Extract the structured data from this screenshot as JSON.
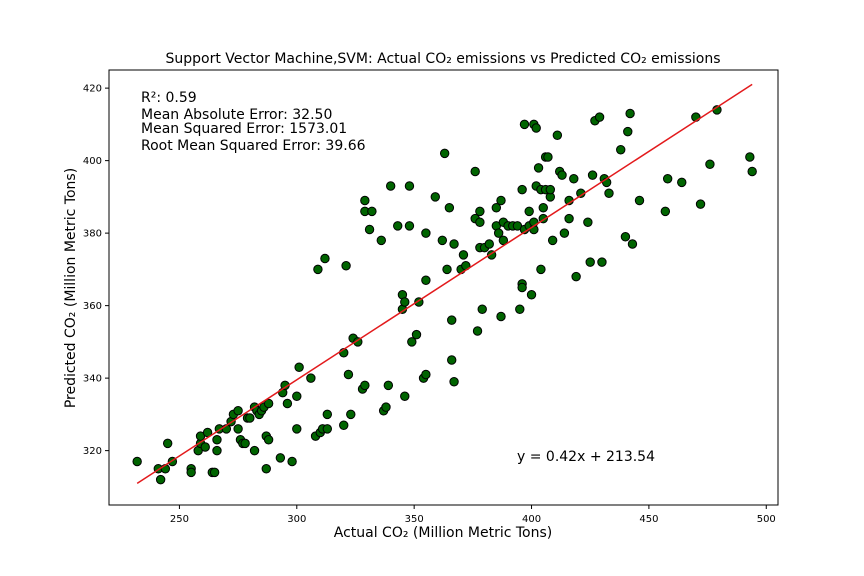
{
  "chart_data": {
    "type": "scatter",
    "title": "Support Vector Machine,SVM: Actual CO₂ emissions vs Predicted CO₂ emissions",
    "xlabel": "Actual CO₂ (Million Metric Tons)",
    "ylabel": "Predicted CO₂ (Million Metric Tons)",
    "xlim": [
      220,
      505
    ],
    "ylim": [
      305,
      425
    ],
    "xticks": [
      250,
      300,
      350,
      400,
      450,
      500
    ],
    "yticks": [
      320,
      340,
      360,
      380,
      400,
      420
    ],
    "grid": false,
    "marker_color": "#006400",
    "marker_edge": "#000000",
    "line_color": "#e31a1c",
    "stats": [
      "R²: 0.59",
      "Mean Absolute Error: 32.50",
      "Mean Squared Error: 1573.01",
      "Root Mean Squared Error: 39.66"
    ],
    "equation": "y = 0.42x + 213.54",
    "fit": {
      "slope": 0.42,
      "intercept": 213.54,
      "x_range": [
        232,
        494
      ]
    },
    "points": [
      [
        232,
        317
      ],
      [
        241,
        315
      ],
      [
        242,
        312
      ],
      [
        244,
        315
      ],
      [
        245,
        322
      ],
      [
        247,
        317
      ],
      [
        255,
        315
      ],
      [
        255,
        314
      ],
      [
        258,
        320
      ],
      [
        259,
        322
      ],
      [
        259,
        324
      ],
      [
        261,
        321
      ],
      [
        262,
        325
      ],
      [
        264,
        314
      ],
      [
        265,
        314
      ],
      [
        266,
        320
      ],
      [
        266,
        323
      ],
      [
        267,
        326
      ],
      [
        270,
        326
      ],
      [
        272,
        328
      ],
      [
        273,
        330
      ],
      [
        275,
        331
      ],
      [
        275,
        326
      ],
      [
        276,
        323
      ],
      [
        277,
        322
      ],
      [
        278,
        322
      ],
      [
        279,
        329
      ],
      [
        280,
        329
      ],
      [
        282,
        332
      ],
      [
        282,
        320
      ],
      [
        283,
        331
      ],
      [
        284,
        330
      ],
      [
        285,
        331
      ],
      [
        286,
        332
      ],
      [
        287,
        324
      ],
      [
        287,
        315
      ],
      [
        288,
        323
      ],
      [
        288,
        333
      ],
      [
        293,
        318
      ],
      [
        294,
        336
      ],
      [
        295,
        338
      ],
      [
        296,
        333
      ],
      [
        298,
        317
      ],
      [
        300,
        326
      ],
      [
        300,
        335
      ],
      [
        301,
        343
      ],
      [
        306,
        340
      ],
      [
        308,
        324
      ],
      [
        309,
        370
      ],
      [
        310,
        325
      ],
      [
        311,
        326
      ],
      [
        312,
        373
      ],
      [
        313,
        330
      ],
      [
        313,
        326
      ],
      [
        320,
        327
      ],
      [
        320,
        347
      ],
      [
        321,
        371
      ],
      [
        322,
        341
      ],
      [
        323,
        330
      ],
      [
        324,
        351
      ],
      [
        326,
        350
      ],
      [
        328,
        337
      ],
      [
        329,
        389
      ],
      [
        329,
        386
      ],
      [
        329,
        338
      ],
      [
        331,
        381
      ],
      [
        332,
        386
      ],
      [
        336,
        378
      ],
      [
        337,
        331
      ],
      [
        338,
        332
      ],
      [
        339,
        338
      ],
      [
        340,
        393
      ],
      [
        343,
        382
      ],
      [
        345,
        359
      ],
      [
        345,
        363
      ],
      [
        346,
        335
      ],
      [
        346,
        361
      ],
      [
        348,
        393
      ],
      [
        348,
        382
      ],
      [
        349,
        350
      ],
      [
        351,
        352
      ],
      [
        352,
        361
      ],
      [
        354,
        340
      ],
      [
        355,
        341
      ],
      [
        355,
        367
      ],
      [
        355,
        380
      ],
      [
        359,
        390
      ],
      [
        362,
        378
      ],
      [
        363,
        402
      ],
      [
        364,
        370
      ],
      [
        365,
        387
      ],
      [
        366,
        356
      ],
      [
        366,
        345
      ],
      [
        367,
        377
      ],
      [
        367,
        339
      ],
      [
        370,
        370
      ],
      [
        371,
        374
      ],
      [
        372,
        371
      ],
      [
        376,
        384
      ],
      [
        376,
        397
      ],
      [
        377,
        353
      ],
      [
        378,
        383
      ],
      [
        378,
        376
      ],
      [
        378,
        386
      ],
      [
        379,
        359
      ],
      [
        380,
        376
      ],
      [
        382,
        377
      ],
      [
        383,
        374
      ],
      [
        385,
        382
      ],
      [
        385,
        387
      ],
      [
        386,
        380
      ],
      [
        387,
        357
      ],
      [
        387,
        389
      ],
      [
        388,
        378
      ],
      [
        388,
        383
      ],
      [
        390,
        382
      ],
      [
        392,
        382
      ],
      [
        394,
        382
      ],
      [
        395,
        359
      ],
      [
        396,
        366
      ],
      [
        396,
        365
      ],
      [
        396,
        392
      ],
      [
        397,
        410
      ],
      [
        397,
        381
      ],
      [
        399,
        382
      ],
      [
        399,
        386
      ],
      [
        400,
        363
      ],
      [
        401,
        410
      ],
      [
        401,
        381
      ],
      [
        401,
        383
      ],
      [
        402,
        393
      ],
      [
        402,
        409
      ],
      [
        403,
        398
      ],
      [
        404,
        392
      ],
      [
        404,
        370
      ],
      [
        405,
        384
      ],
      [
        405,
        387
      ],
      [
        406,
        392
      ],
      [
        406,
        401
      ],
      [
        407,
        401
      ],
      [
        408,
        390
      ],
      [
        408,
        392
      ],
      [
        409,
        378
      ],
      [
        411,
        407
      ],
      [
        412,
        397
      ],
      [
        413,
        396
      ],
      [
        414,
        380
      ],
      [
        416,
        389
      ],
      [
        416,
        384
      ],
      [
        418,
        395
      ],
      [
        419,
        368
      ],
      [
        421,
        391
      ],
      [
        424,
        383
      ],
      [
        425,
        372
      ],
      [
        426,
        396
      ],
      [
        427,
        411
      ],
      [
        429,
        412
      ],
      [
        430,
        372
      ],
      [
        431,
        395
      ],
      [
        432,
        394
      ],
      [
        433,
        391
      ],
      [
        438,
        403
      ],
      [
        440,
        379
      ],
      [
        441,
        408
      ],
      [
        442,
        413
      ],
      [
        443,
        377
      ],
      [
        446,
        389
      ],
      [
        457,
        386
      ],
      [
        458,
        395
      ],
      [
        464,
        394
      ],
      [
        470,
        412
      ],
      [
        472,
        388
      ],
      [
        476,
        399
      ],
      [
        479,
        414
      ],
      [
        493,
        401
      ],
      [
        494,
        397
      ]
    ]
  }
}
